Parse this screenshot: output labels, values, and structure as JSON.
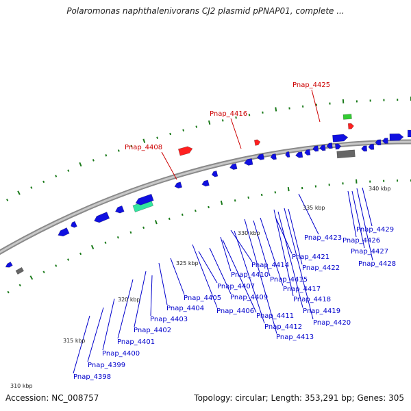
{
  "header": {
    "title": "Polaromonas naphthalenivorans CJ2 plasmid pPNAP01, complete ..."
  },
  "footer": {
    "accession": "Accession: NC_008757",
    "summary": "Topology: circular; Length: 353,291 bp; Genes: 305"
  },
  "colors": {
    "forward_cds": "#1010e0",
    "reverse_cds": "#1010e0",
    "highlight": "#ff2020",
    "pink": "#ff3aa0",
    "teal": "#33e6a0",
    "grey": "#666666",
    "green": "#33cc33",
    "ticks": "#1a7a1a"
  },
  "scale_labels": [
    "310 kbp",
    "315 kbp",
    "320 kbp",
    "325 kbp",
    "330 kbp",
    "335 kbp",
    "340 kbp"
  ],
  "genes_red": [
    "Pnap_4408",
    "Pnap_4416",
    "Pnap_4425"
  ],
  "genes_blue": [
    "Pnap_4398",
    "Pnap_4399",
    "Pnap_4400",
    "Pnap_4401",
    "Pnap_4402",
    "Pnap_4403",
    "Pnap_4404",
    "Pnap_4405",
    "Pnap_4406",
    "Pnap_4407",
    "Pnap_4409",
    "Pnap_4410",
    "Pnap_4411",
    "Pnap_4412",
    "Pnap_4413",
    "Pnap_4414",
    "Pnap_4415",
    "Pnap_4417",
    "Pnap_4418",
    "Pnap_4419",
    "Pnap_4420",
    "Pnap_4421",
    "Pnap_4422",
    "Pnap_4423",
    "Pnap_4426",
    "Pnap_4427",
    "Pnap_4428",
    "Pnap_4429"
  ]
}
